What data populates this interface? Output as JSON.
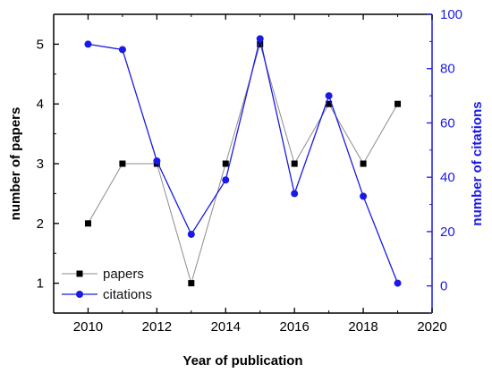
{
  "chart_data": {
    "type": "line",
    "title": "",
    "xlabel": "Year of publication",
    "ylabel": "number of papers",
    "y2label": "number of citations",
    "xlim": [
      2009,
      2020
    ],
    "ylim": [
      0.5,
      5.5
    ],
    "y2lim": [
      -10,
      100
    ],
    "xticks": [
      2010,
      2012,
      2014,
      2016,
      2018,
      2020
    ],
    "yticks": [
      1,
      2,
      3,
      4,
      5
    ],
    "y2ticks": [
      0,
      20,
      40,
      60,
      80,
      100
    ],
    "legend_position": "bottom-left",
    "grid": false,
    "colors": {
      "axis": "#000000",
      "right_axis": "#1a1ae6",
      "papers": "#000000",
      "papers_line": "#8c8c8c",
      "citations": "#1a1ae6"
    },
    "x": [
      2010,
      2011,
      2012,
      2013,
      2014,
      2015,
      2016,
      2017,
      2018,
      2019
    ],
    "series": [
      {
        "name": "papers",
        "axis": "left",
        "marker": "square",
        "values": [
          2,
          3,
          3,
          1,
          3,
          5,
          3,
          4,
          3,
          4
        ]
      },
      {
        "name": "citations",
        "axis": "right",
        "marker": "circle",
        "values": [
          89,
          87,
          46,
          19,
          39,
          91,
          34,
          70,
          33,
          1
        ]
      }
    ]
  }
}
